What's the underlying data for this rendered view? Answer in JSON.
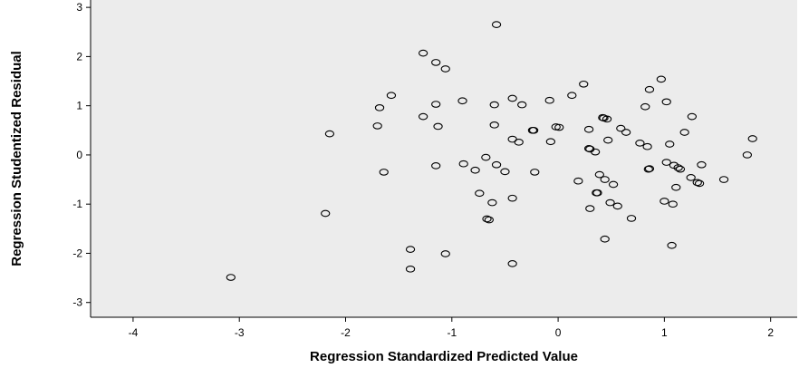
{
  "chart_data": {
    "type": "scatter",
    "title": "",
    "xlabel": "Regression Standardized Predicted Value",
    "ylabel": "Regression Studentized Residual",
    "xlim": [
      -4.4,
      2.25
    ],
    "ylim": [
      -3.3,
      3.15
    ],
    "xticks": [
      "-4",
      "-3",
      "-2",
      "-1",
      "0",
      "1",
      "2"
    ],
    "yticks": [
      "-3",
      "-2",
      "-1",
      "0",
      "1",
      "2",
      "3"
    ],
    "grid": false,
    "background_color": "#ececec",
    "marker_color": "#000000",
    "points": [
      {
        "x": -3.08,
        "y": -2.49
      },
      {
        "x": -2.19,
        "y": -1.19
      },
      {
        "x": -2.15,
        "y": 0.43
      },
      {
        "x": -1.7,
        "y": 0.59
      },
      {
        "x": -1.68,
        "y": 0.96
      },
      {
        "x": -1.64,
        "y": -0.35
      },
      {
        "x": -1.57,
        "y": 1.21
      },
      {
        "x": -1.39,
        "y": -1.92
      },
      {
        "x": -1.39,
        "y": -2.32
      },
      {
        "x": -1.27,
        "y": 2.07
      },
      {
        "x": -1.27,
        "y": 0.78
      },
      {
        "x": -1.15,
        "y": 1.88
      },
      {
        "x": -1.15,
        "y": 1.03
      },
      {
        "x": -1.15,
        "y": -0.22
      },
      {
        "x": -1.13,
        "y": 0.58
      },
      {
        "x": -1.06,
        "y": 1.75
      },
      {
        "x": -1.06,
        "y": -2.01
      },
      {
        "x": -0.9,
        "y": 1.1
      },
      {
        "x": -0.89,
        "y": -0.18
      },
      {
        "x": -0.78,
        "y": -0.31
      },
      {
        "x": -0.74,
        "y": -0.78
      },
      {
        "x": -0.68,
        "y": -0.05
      },
      {
        "x": -0.67,
        "y": -1.3
      },
      {
        "x": -0.65,
        "y": -1.32
      },
      {
        "x": -0.62,
        "y": -0.97
      },
      {
        "x": -0.6,
        "y": 1.02
      },
      {
        "x": -0.6,
        "y": 0.61
      },
      {
        "x": -0.58,
        "y": -0.2
      },
      {
        "x": -0.58,
        "y": 2.65
      },
      {
        "x": -0.5,
        "y": -0.34
      },
      {
        "x": -0.43,
        "y": 1.15
      },
      {
        "x": -0.43,
        "y": 0.32
      },
      {
        "x": -0.43,
        "y": -0.88
      },
      {
        "x": -0.43,
        "y": -2.21
      },
      {
        "x": -0.37,
        "y": 0.26
      },
      {
        "x": -0.34,
        "y": 1.02
      },
      {
        "x": -0.24,
        "y": 0.5
      },
      {
        "x": -0.23,
        "y": 0.5
      },
      {
        "x": -0.22,
        "y": -0.35
      },
      {
        "x": -0.08,
        "y": 1.11
      },
      {
        "x": -0.07,
        "y": 0.27
      },
      {
        "x": -0.02,
        "y": 0.57
      },
      {
        "x": 0.01,
        "y": 0.56
      },
      {
        "x": 0.13,
        "y": 1.21
      },
      {
        "x": 0.19,
        "y": -0.53
      },
      {
        "x": 0.24,
        "y": 1.44
      },
      {
        "x": 0.29,
        "y": 0.52
      },
      {
        "x": 0.29,
        "y": 0.13
      },
      {
        "x": 0.3,
        "y": 0.12
      },
      {
        "x": 0.3,
        "y": -1.09
      },
      {
        "x": 0.35,
        "y": 0.06
      },
      {
        "x": 0.36,
        "y": -0.77
      },
      {
        "x": 0.37,
        "y": -0.77
      },
      {
        "x": 0.39,
        "y": -0.4
      },
      {
        "x": 0.42,
        "y": 0.76
      },
      {
        "x": 0.43,
        "y": 0.75
      },
      {
        "x": 0.44,
        "y": -0.5
      },
      {
        "x": 0.44,
        "y": -1.71
      },
      {
        "x": 0.46,
        "y": 0.73
      },
      {
        "x": 0.47,
        "y": 0.3
      },
      {
        "x": 0.49,
        "y": -0.97
      },
      {
        "x": 0.52,
        "y": -0.6
      },
      {
        "x": 0.56,
        "y": -1.04
      },
      {
        "x": 0.59,
        "y": 0.54
      },
      {
        "x": 0.64,
        "y": 0.46
      },
      {
        "x": 0.69,
        "y": -1.29
      },
      {
        "x": 0.77,
        "y": 0.24
      },
      {
        "x": 0.82,
        "y": 0.98
      },
      {
        "x": 0.84,
        "y": 0.17
      },
      {
        "x": 0.85,
        "y": -0.29
      },
      {
        "x": 0.86,
        "y": -0.28
      },
      {
        "x": 0.86,
        "y": 1.33
      },
      {
        "x": 0.97,
        "y": 1.54
      },
      {
        "x": 1.0,
        "y": -0.94
      },
      {
        "x": 1.02,
        "y": 1.08
      },
      {
        "x": 1.02,
        "y": -0.15
      },
      {
        "x": 1.05,
        "y": 0.22
      },
      {
        "x": 1.07,
        "y": -1.84
      },
      {
        "x": 1.08,
        "y": -1.0
      },
      {
        "x": 1.09,
        "y": -0.21
      },
      {
        "x": 1.11,
        "y": -0.66
      },
      {
        "x": 1.13,
        "y": -0.26
      },
      {
        "x": 1.15,
        "y": -0.29
      },
      {
        "x": 1.19,
        "y": 0.46
      },
      {
        "x": 1.25,
        "y": -0.46
      },
      {
        "x": 1.26,
        "y": 0.78
      },
      {
        "x": 1.31,
        "y": -0.56
      },
      {
        "x": 1.33,
        "y": -0.58
      },
      {
        "x": 1.35,
        "y": -0.2
      },
      {
        "x": 1.56,
        "y": -0.5
      },
      {
        "x": 1.78,
        "y": 0.0
      },
      {
        "x": 1.83,
        "y": 0.33
      }
    ]
  }
}
